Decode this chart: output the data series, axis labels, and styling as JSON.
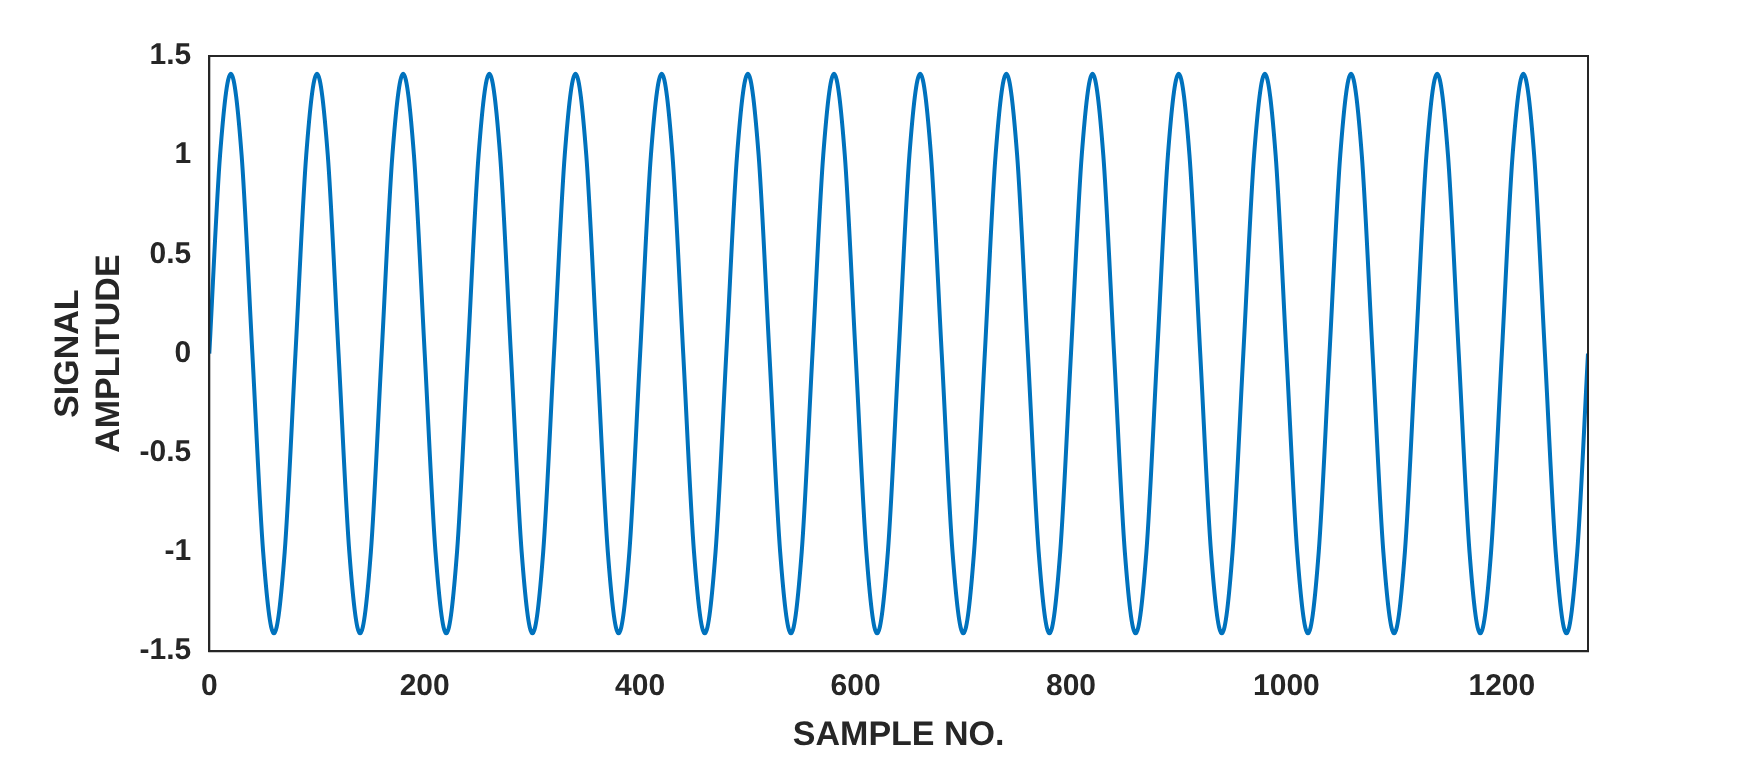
{
  "chart_data": {
    "type": "line",
    "xlabel": "SAMPLE NO.",
    "ylabel": "SIGNAL\nAMPLITUDE",
    "x": [
      0,
      10,
      20,
      30,
      40,
      50,
      60,
      70,
      80,
      90,
      100,
      110,
      120,
      130,
      140,
      150,
      160,
      170,
      180,
      190,
      200,
      210,
      220,
      230,
      240,
      250,
      260,
      270,
      280,
      290,
      300,
      310,
      320,
      330,
      340,
      350,
      360,
      370,
      380,
      390,
      400,
      410,
      420,
      430,
      440,
      450,
      460,
      470,
      480,
      490,
      500,
      510,
      520,
      530,
      540,
      550,
      560,
      570,
      580,
      590,
      600,
      610,
      620,
      630,
      640,
      650,
      660,
      670,
      680,
      690,
      700,
      710,
      720,
      730,
      740,
      750,
      760,
      770,
      780,
      790,
      800,
      810,
      820,
      830,
      840,
      850,
      860,
      870,
      880,
      890,
      900,
      910,
      920,
      930,
      940,
      950,
      960,
      970,
      980,
      990,
      1000,
      1010,
      1020,
      1030,
      1040,
      1050,
      1060,
      1070,
      1080,
      1090,
      1100,
      1110,
      1120,
      1130,
      1140,
      1150,
      1160,
      1170,
      1180,
      1190,
      1200,
      1210,
      1220,
      1230,
      1240,
      1250,
      1260,
      1270,
      1280
    ],
    "series": [
      {
        "color": "#0072bd",
        "values": [
          0,
          1,
          1.41,
          1,
          0,
          -1,
          -1.41,
          -1,
          0,
          1,
          1.41,
          1,
          0,
          -1,
          -1.41,
          -1,
          0,
          1,
          1.41,
          1,
          0,
          -1,
          -1.41,
          -1,
          0,
          1,
          1.41,
          1,
          0,
          -1,
          -1.41,
          -1,
          0,
          1,
          1.41,
          1,
          0,
          -1,
          -1.41,
          -1,
          0,
          1,
          1.41,
          1,
          0,
          -1,
          -1.41,
          -1,
          0,
          1,
          1.41,
          1,
          0,
          -1,
          -1.41,
          -1,
          0,
          1,
          1.41,
          1,
          0,
          -1,
          -1.41,
          -1,
          0,
          1,
          1.41,
          1,
          0,
          -1,
          -1.41,
          -1,
          0,
          1,
          1.41,
          1,
          0,
          -1,
          -1.41,
          -1,
          0,
          1,
          1.41,
          1,
          0,
          -1,
          -1.41,
          -1,
          0,
          1,
          1.41,
          1,
          0,
          -1,
          -1.41,
          -1,
          0,
          1,
          1.41,
          1,
          0,
          -1,
          -1.41,
          -1,
          0,
          1,
          1.41,
          1,
          0,
          -1,
          -1.41,
          -1,
          0,
          1,
          1.41,
          1,
          0,
          -1,
          -1.41,
          -1,
          0,
          1,
          1.41,
          1,
          0,
          -1,
          -1.41,
          -1,
          0
        ]
      }
    ],
    "xlim": [
      0,
      1280
    ],
    "xticks": [
      0,
      200,
      400,
      600,
      800,
      1000,
      1200
    ],
    "ylim": [
      -1.5,
      1.5
    ],
    "yticks": [
      -1.5,
      -1,
      -0.5,
      0,
      0.5,
      1,
      1.5
    ]
  }
}
